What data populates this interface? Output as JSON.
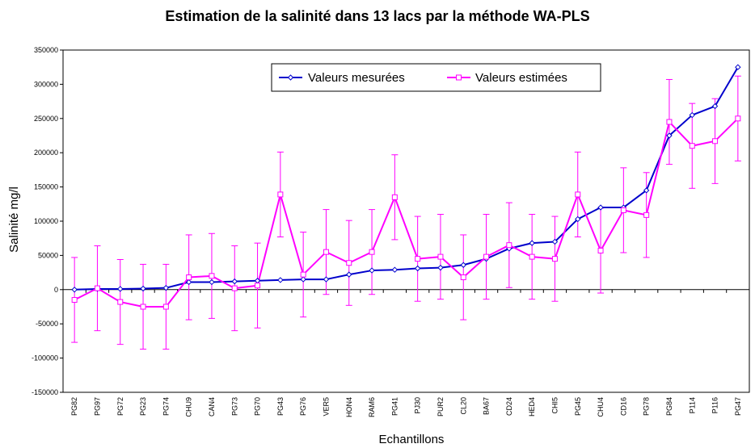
{
  "chart_data": {
    "type": "line",
    "title": "Estimation de la salinité dans 13 lacs par la méthode WA-PLS",
    "xlabel": "Echantillons",
    "ylabel": "Salinité mg/l",
    "ylim": [
      -150000,
      350000
    ],
    "yticks": [
      350000,
      300000,
      250000,
      200000,
      150000,
      100000,
      50000,
      0,
      -50000,
      -100000,
      -150000
    ],
    "grid": false,
    "legend_placement": "top",
    "categories": [
      "PG82",
      "PG97",
      "PG72",
      "PG23",
      "PG74",
      "CHU9",
      "CAN4",
      "PG73",
      "PG70",
      "PG43",
      "PG76",
      "VER5",
      "HON4",
      "RAM6",
      "PG41",
      "PJ30",
      "PUR2",
      "CL20",
      "BA67",
      "CD24",
      "HED4",
      "CHI5",
      "PG45",
      "CHU4",
      "CD16",
      "PG78",
      "PG84",
      "P114",
      "P116",
      "PG47"
    ],
    "series": [
      {
        "name": "Valeurs mesurées",
        "color": "#0000cc",
        "marker": "diamond",
        "values": [
          0,
          1000,
          1000,
          1500,
          2500,
          11000,
          11000,
          12000,
          13000,
          14000,
          15000,
          15000,
          22000,
          28000,
          29000,
          31000,
          32000,
          36000,
          45000,
          60000,
          68000,
          70000,
          103000,
          120000,
          120000,
          145000,
          225000,
          255000,
          268000,
          325000
        ]
      },
      {
        "name": "Valeurs estimées",
        "color": "#ff00ff",
        "marker": "square",
        "error": 62000,
        "values": [
          -15000,
          2000,
          -18000,
          -25000,
          -25000,
          18000,
          20000,
          2000,
          6000,
          139000,
          22000,
          55000,
          39000,
          55000,
          135000,
          45000,
          48000,
          18000,
          48000,
          65000,
          48000,
          45000,
          139000,
          57000,
          116000,
          109000,
          245000,
          210000,
          217000,
          250000
        ]
      }
    ]
  }
}
